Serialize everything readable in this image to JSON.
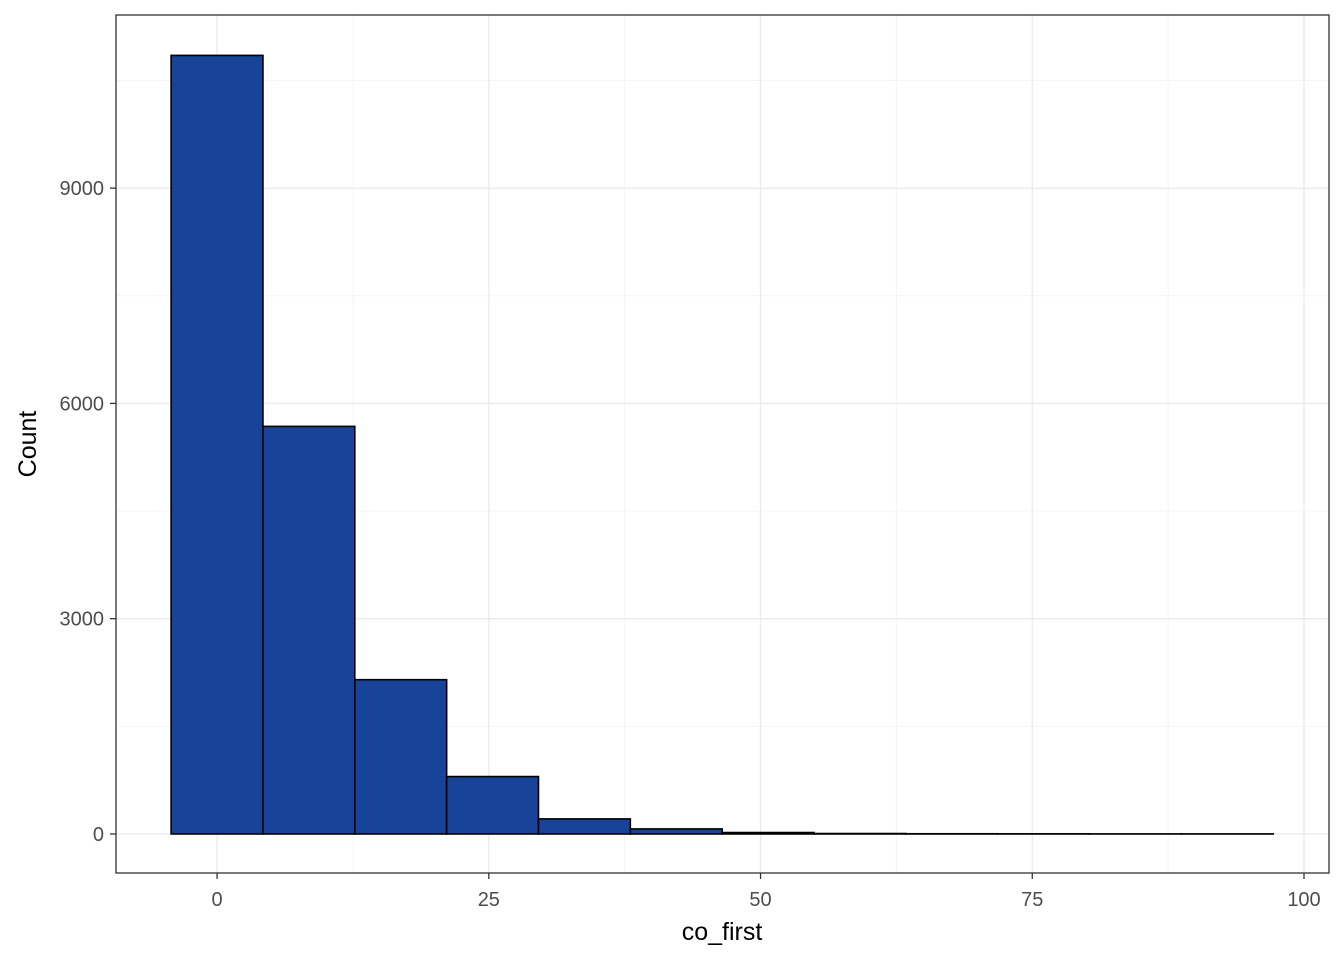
{
  "chart_data": {
    "type": "bar",
    "subtype": "histogram",
    "title": "",
    "xlabel": "co_first",
    "ylabel": "Count",
    "bin_width": 8.45,
    "bins": [
      {
        "x0": -4.23,
        "x1": 4.22,
        "count": 10850
      },
      {
        "x0": 4.22,
        "x1": 12.67,
        "count": 5680
      },
      {
        "x0": 12.67,
        "x1": 21.12,
        "count": 2150
      },
      {
        "x0": 21.12,
        "x1": 29.57,
        "count": 800
      },
      {
        "x0": 29.57,
        "x1": 38.02,
        "count": 210
      },
      {
        "x0": 38.02,
        "x1": 46.47,
        "count": 70
      },
      {
        "x0": 46.47,
        "x1": 54.92,
        "count": 20
      },
      {
        "x0": 54.92,
        "x1": 63.37,
        "count": 6
      },
      {
        "x0": 63.37,
        "x1": 71.82,
        "count": 3
      },
      {
        "x0": 71.82,
        "x1": 80.27,
        "count": 2
      },
      {
        "x0": 80.27,
        "x1": 88.72,
        "count": 1
      },
      {
        "x0": 88.72,
        "x1": 97.17,
        "count": 1
      }
    ],
    "xlim": [
      -9.3,
      102.3
    ],
    "ylim": [
      -544,
      11413
    ],
    "x_ticks": [
      0,
      25,
      50,
      75,
      100
    ],
    "x_tick_labels": [
      "0",
      "25",
      "50",
      "75",
      "100"
    ],
    "y_ticks": [
      0,
      3000,
      6000,
      9000
    ],
    "y_tick_labels": [
      "0",
      "3000",
      "6000",
      "9000"
    ],
    "grid": true,
    "legend": "none",
    "colors": {
      "bar_fill": "#174499",
      "bar_stroke": "#000000",
      "grid_major": "#ebebeb",
      "grid_minor": "#f4f4f4",
      "panel_border": "#333333"
    }
  }
}
